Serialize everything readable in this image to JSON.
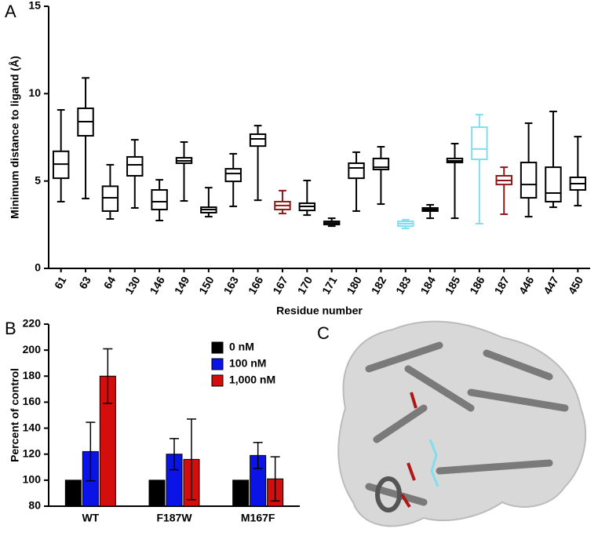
{
  "panel_labels": [
    "A",
    "B",
    "C"
  ],
  "chart_data": [
    {
      "type": "box",
      "ylabel": "Minimum distance to ligand (Å)",
      "xlabel": "Residue number",
      "ylim": [
        0,
        15
      ],
      "yticks": [
        0,
        5,
        10,
        15
      ],
      "boxes": [
        {
          "category": "61",
          "whislo": 3.82,
          "q1": 5.16,
          "median": 5.97,
          "q3": 6.7,
          "whishi": 9.07,
          "color": "#000000"
        },
        {
          "category": "63",
          "whislo": 4.0,
          "q1": 7.59,
          "median": 8.4,
          "q3": 9.16,
          "whishi": 10.9,
          "color": "#000000"
        },
        {
          "category": "64",
          "whislo": 2.83,
          "q1": 3.28,
          "median": 4.04,
          "q3": 4.7,
          "whishi": 5.93,
          "color": "#000000"
        },
        {
          "category": "130",
          "whislo": 3.46,
          "q1": 5.3,
          "median": 5.93,
          "q3": 6.38,
          "whishi": 7.36,
          "color": "#000000"
        },
        {
          "category": "146",
          "whislo": 2.74,
          "q1": 3.37,
          "median": 3.82,
          "q3": 4.49,
          "whishi": 5.07,
          "color": "#000000"
        },
        {
          "category": "149",
          "whislo": 3.86,
          "q1": 6.02,
          "median": 6.15,
          "q3": 6.33,
          "whishi": 7.23,
          "color": "#000000"
        },
        {
          "category": "150",
          "whislo": 2.96,
          "q1": 3.19,
          "median": 3.37,
          "q3": 3.5,
          "whishi": 4.62,
          "color": "#000000"
        },
        {
          "category": "163",
          "whislo": 3.55,
          "q1": 4.98,
          "median": 5.43,
          "q3": 5.7,
          "whishi": 6.56,
          "color": "#000000"
        },
        {
          "category": "166",
          "whislo": 3.9,
          "q1": 7.0,
          "median": 7.41,
          "q3": 7.68,
          "whishi": 8.17,
          "color": "#000000"
        },
        {
          "category": "167",
          "whislo": 3.14,
          "q1": 3.37,
          "median": 3.6,
          "q3": 3.82,
          "whishi": 4.45,
          "color": "#8b1a1a"
        },
        {
          "category": "170",
          "whislo": 3.05,
          "q1": 3.32,
          "median": 3.55,
          "q3": 3.73,
          "whishi": 5.03,
          "color": "#000000"
        },
        {
          "category": "171",
          "whislo": 2.42,
          "q1": 2.51,
          "median": 2.6,
          "q3": 2.69,
          "whishi": 2.87,
          "color": "#000000"
        },
        {
          "category": "180",
          "whislo": 3.28,
          "q1": 5.16,
          "median": 5.75,
          "q3": 6.02,
          "whishi": 6.65,
          "color": "#000000"
        },
        {
          "category": "182",
          "whislo": 3.68,
          "q1": 5.66,
          "median": 5.79,
          "q3": 6.29,
          "whishi": 6.96,
          "color": "#000000"
        },
        {
          "category": "183",
          "whislo": 2.29,
          "q1": 2.42,
          "median": 2.56,
          "q3": 2.69,
          "whishi": 2.78,
          "color": "#7fdff0"
        },
        {
          "category": "184",
          "whislo": 2.87,
          "q1": 3.28,
          "median": 3.37,
          "q3": 3.46,
          "whishi": 3.64,
          "color": "#000000"
        },
        {
          "category": "185",
          "whislo": 2.87,
          "q1": 6.06,
          "median": 6.15,
          "q3": 6.29,
          "whishi": 7.14,
          "color": "#000000"
        },
        {
          "category": "186",
          "whislo": 2.56,
          "q1": 6.24,
          "median": 6.83,
          "q3": 8.08,
          "whishi": 8.8,
          "color": "#7fdff0"
        },
        {
          "category": "187",
          "whislo": 3.1,
          "q1": 4.8,
          "median": 5.03,
          "q3": 5.3,
          "whishi": 5.79,
          "color": "#8b1a1a"
        },
        {
          "category": "446",
          "whislo": 2.96,
          "q1": 4.04,
          "median": 4.8,
          "q3": 6.06,
          "whishi": 8.31,
          "color": "#000000"
        },
        {
          "category": "447",
          "whislo": 3.5,
          "q1": 3.82,
          "median": 4.31,
          "q3": 5.79,
          "whishi": 8.98,
          "color": "#000000"
        },
        {
          "category": "450",
          "whislo": 3.59,
          "q1": 4.49,
          "median": 4.85,
          "q3": 5.21,
          "whishi": 7.54,
          "color": "#000000"
        }
      ]
    },
    {
      "type": "bar",
      "ylabel": "Percent of control",
      "legend": "upper right",
      "ylim": [
        80,
        220
      ],
      "yticks": [
        80,
        100,
        120,
        140,
        160,
        180,
        200,
        220
      ],
      "categories": [
        "WT",
        "F187W",
        "M167F"
      ],
      "series": [
        {
          "name": "0 nM",
          "color": "#000000",
          "values": [
            100,
            100,
            100
          ]
        },
        {
          "name": "100 nM",
          "color": "#0a14e6",
          "values": [
            122,
            120,
            119
          ],
          "errors": [
            22.5,
            12,
            10
          ]
        },
        {
          "name": "1,000 nM",
          "color": "#d40d0d",
          "values": [
            180,
            116,
            101
          ],
          "errors": [
            21,
            31,
            17
          ]
        }
      ]
    }
  ]
}
